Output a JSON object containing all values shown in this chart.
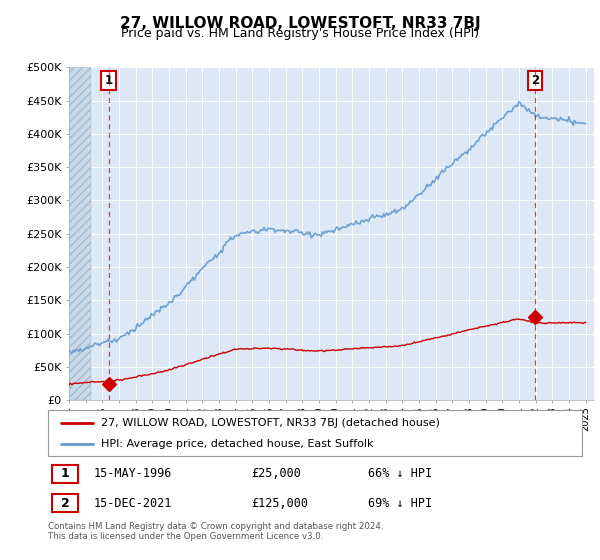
{
  "title": "27, WILLOW ROAD, LOWESTOFT, NR33 7BJ",
  "subtitle": "Price paid vs. HM Land Registry's House Price Index (HPI)",
  "property_label": "27, WILLOW ROAD, LOWESTOFT, NR33 7BJ (detached house)",
  "hpi_label": "HPI: Average price, detached house, East Suffolk",
  "sale1_date": "15-MAY-1996",
  "sale1_price": 25000,
  "sale1_hpi_pct": "66% ↓ HPI",
  "sale2_date": "15-DEC-2021",
  "sale2_price": 125000,
  "sale2_hpi_pct": "69% ↓ HPI",
  "footnote": "Contains HM Land Registry data © Crown copyright and database right 2024.\nThis data is licensed under the Open Government Licence v3.0.",
  "property_color": "#cc0000",
  "hpi_color": "#6699cc",
  "bg_color": "#dce8f5",
  "ylim": [
    0,
    500000
  ],
  "yticks": [
    0,
    50000,
    100000,
    150000,
    200000,
    250000,
    300000,
    350000,
    400000,
    450000,
    500000
  ],
  "sale1_x": 1996.37,
  "sale2_x": 2021.96,
  "xmin": 1994,
  "xmax": 2025.5
}
